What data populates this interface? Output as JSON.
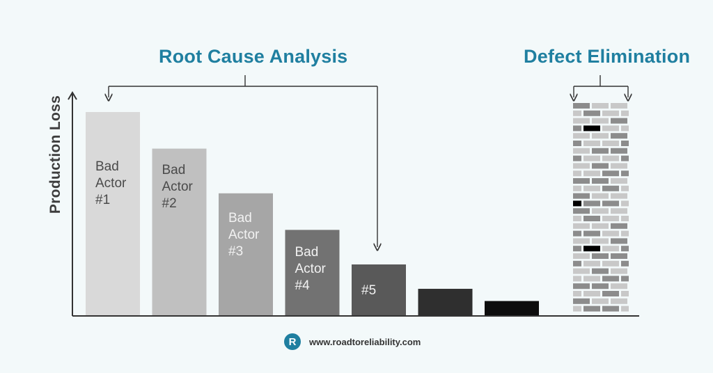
{
  "titles": {
    "root_cause": "Root Cause Analysis",
    "defect_elimination": "Defect Elimination"
  },
  "axis": {
    "ylabel": "Production Loss"
  },
  "bars": [
    {
      "label": "Bad\nActor\n#1",
      "value": 100,
      "color": "#d9d9d9",
      "light_text": false
    },
    {
      "label": "Bad\nActor\n#2",
      "value": 82,
      "color": "#c0c0c0",
      "light_text": false
    },
    {
      "label": "Bad\nActor\n#3",
      "value": 60,
      "color": "#a6a6a6",
      "light_text": true
    },
    {
      "label": "Bad\nActor\n#4",
      "value": 42,
      "color": "#727272",
      "light_text": true
    },
    {
      "label": "#5",
      "value": 25,
      "color": "#595959",
      "light_text": true
    },
    {
      "label": "",
      "value": 13,
      "color": "#2f2f2f",
      "light_text": true
    },
    {
      "label": "",
      "value": 7,
      "color": "#0d0d0d",
      "light_text": true
    }
  ],
  "brick_colors": {
    "light": "#c8c8c8",
    "medium": "#8c8c8c",
    "dark": "#000000",
    "mortar": "#f3f9fa"
  },
  "colors": {
    "accent": "#1f7fa0",
    "axis": "#333333",
    "bracket": "#333333",
    "background": "#f3f9fa"
  },
  "footer": {
    "logo_letter": "R",
    "url": "www.roadtoreliability.com"
  }
}
